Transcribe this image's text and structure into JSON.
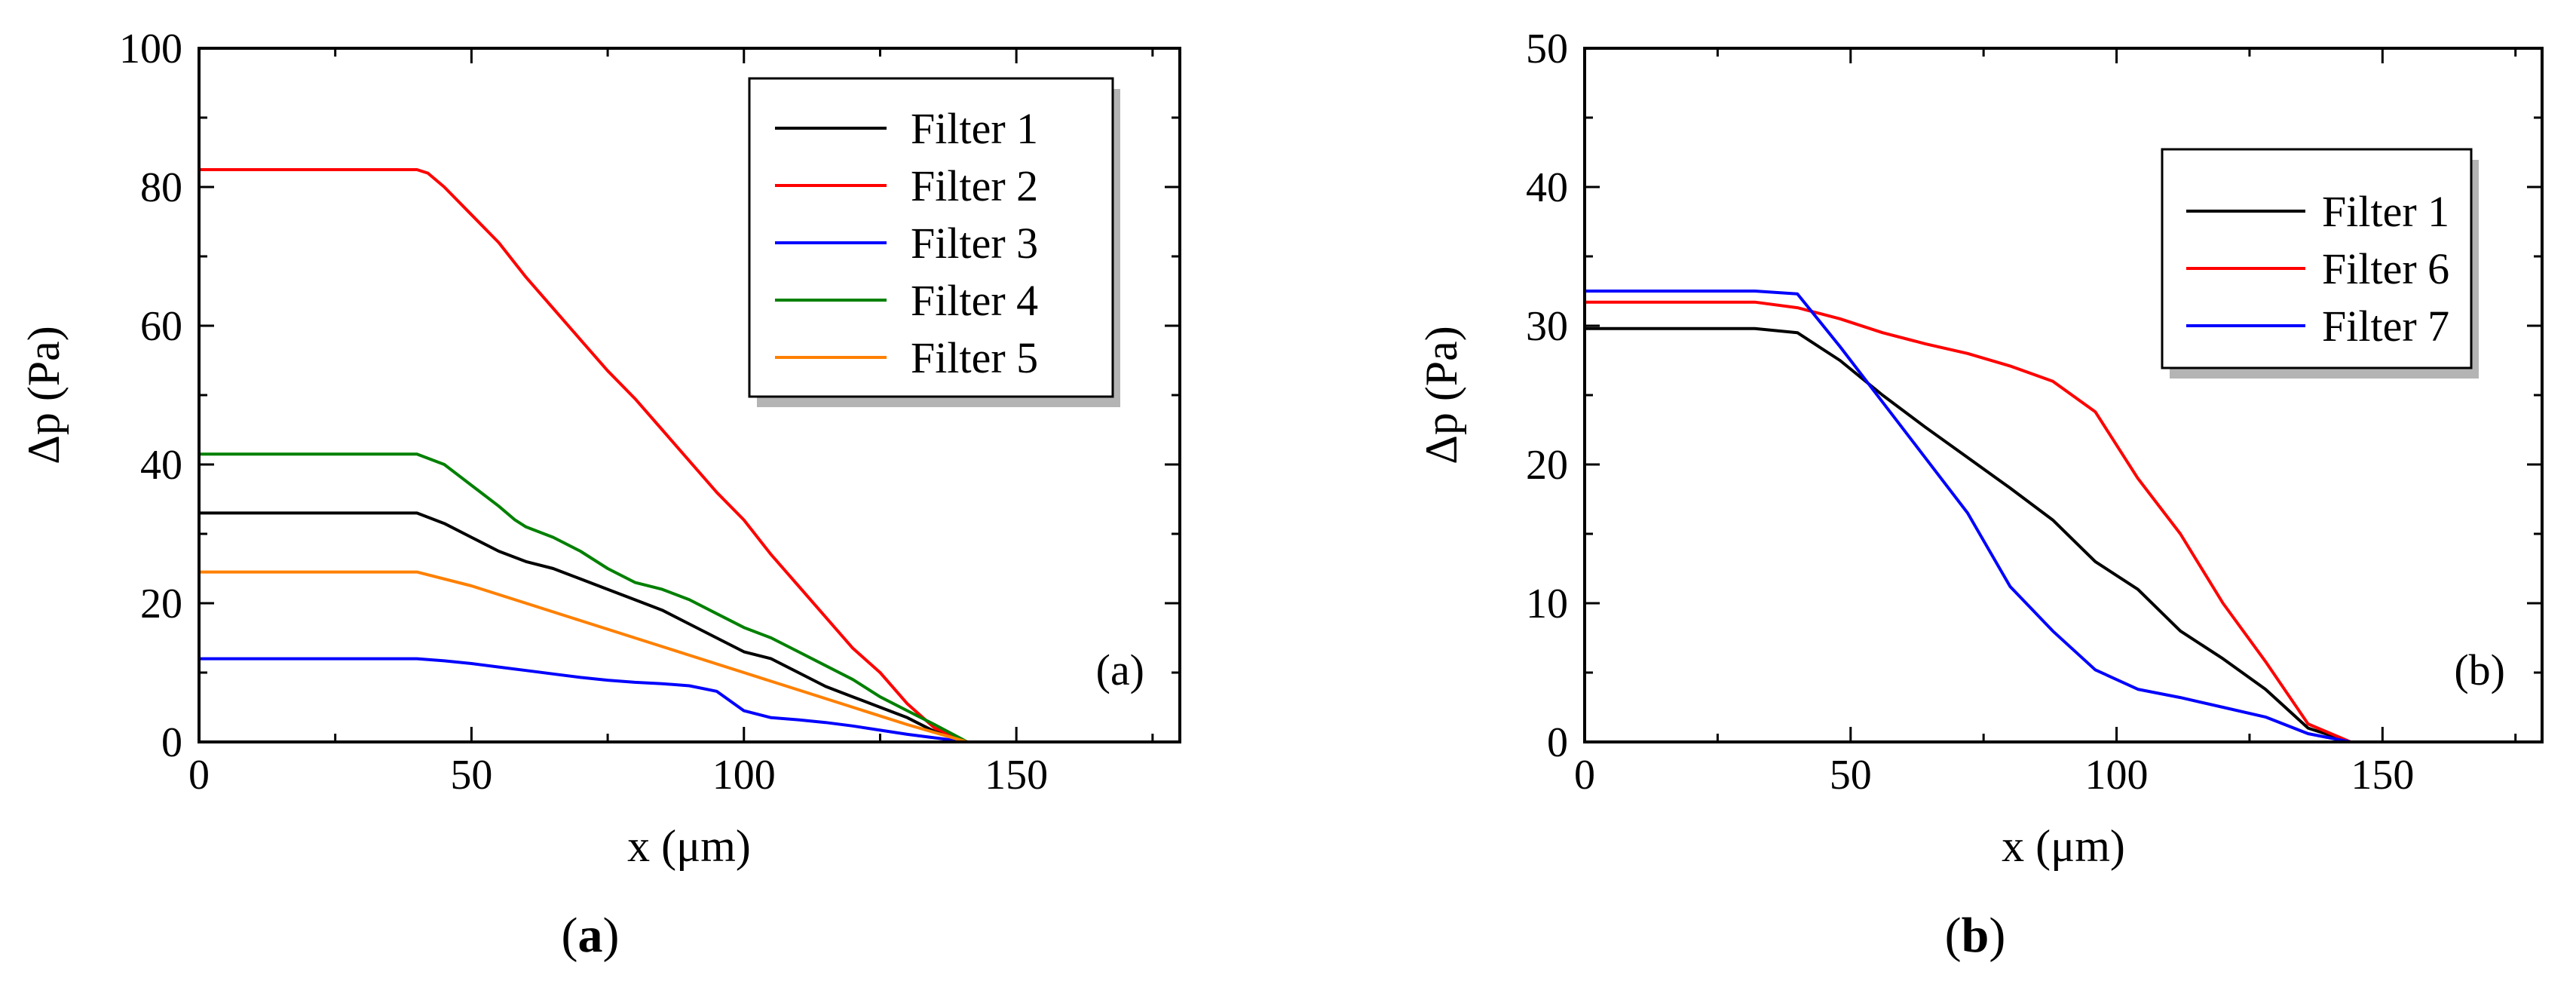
{
  "chart_data": [
    {
      "type": "line",
      "panel_label": "(a)",
      "caption_open": "(",
      "caption_letter": "a",
      "caption_close": ")",
      "xlabel": "x (μm)",
      "ylabel": "Δp (Pa)",
      "xlim": [
        0,
        180
      ],
      "ylim": [
        0,
        100
      ],
      "xticks": [
        0,
        50,
        100,
        150
      ],
      "yticks": [
        0,
        20,
        40,
        60,
        80,
        100
      ],
      "legend_position": "top-right",
      "series": [
        {
          "name": "Filter 1",
          "color": "#000000",
          "x": [
            0,
            40,
            45,
            50,
            55,
            60,
            65,
            70,
            75,
            80,
            85,
            90,
            95,
            100,
            105,
            110,
            115,
            120,
            125,
            130,
            135,
            141
          ],
          "y": [
            33,
            33,
            31.5,
            29.5,
            27.5,
            26,
            25,
            23.5,
            22,
            20.5,
            19,
            17,
            15,
            13,
            12,
            10,
            8,
            6.5,
            5,
            3.5,
            1.5,
            0
          ]
        },
        {
          "name": "Filter 2",
          "color": "#ff0000",
          "x": [
            0,
            40,
            42,
            45,
            50,
            55,
            60,
            65,
            70,
            75,
            80,
            85,
            90,
            95,
            100,
            105,
            110,
            115,
            120,
            125,
            130,
            135,
            141
          ],
          "y": [
            82.5,
            82.5,
            82,
            80,
            76,
            72,
            67,
            62.5,
            58,
            53.5,
            49.5,
            45,
            40.5,
            36,
            32,
            27,
            22.5,
            18,
            13.5,
            10,
            5.5,
            2,
            0
          ]
        },
        {
          "name": "Filter 3",
          "color": "#0000ff",
          "x": [
            0,
            40,
            45,
            50,
            55,
            60,
            65,
            70,
            75,
            80,
            85,
            90,
            95,
            100,
            105,
            110,
            115,
            120,
            125,
            130,
            135,
            141
          ],
          "y": [
            12,
            12,
            11.7,
            11.3,
            10.8,
            10.3,
            9.8,
            9.3,
            8.9,
            8.6,
            8.4,
            8.1,
            7.3,
            4.5,
            3.5,
            3.2,
            2.8,
            2.3,
            1.7,
            1.1,
            0.6,
            0
          ]
        },
        {
          "name": "Filter 4",
          "color": "#008000",
          "x": [
            0,
            40,
            45,
            50,
            55,
            58,
            60,
            65,
            70,
            75,
            80,
            85,
            90,
            95,
            100,
            105,
            110,
            115,
            120,
            125,
            130,
            135,
            141
          ],
          "y": [
            41.5,
            41.5,
            40,
            37,
            34,
            32,
            31,
            29.5,
            27.5,
            25,
            23,
            22,
            20.5,
            18.5,
            16.5,
            15,
            13,
            11,
            9,
            6.5,
            4.5,
            2.5,
            0
          ]
        },
        {
          "name": "Filter 5",
          "color": "#ff8000",
          "x": [
            0,
            40,
            50,
            60,
            70,
            80,
            90,
            100,
            110,
            120,
            130,
            141
          ],
          "y": [
            24.5,
            24.5,
            22.5,
            20,
            17.5,
            15,
            12.5,
            10,
            7.5,
            5,
            2.5,
            0
          ]
        }
      ]
    },
    {
      "type": "line",
      "panel_label": "(b)",
      "caption_open": "(",
      "caption_letter": "b",
      "caption_close": ")",
      "xlabel": "x (μm)",
      "ylabel": "Δp (Pa)",
      "xlim": [
        0,
        180
      ],
      "ylim": [
        0,
        50
      ],
      "xticks": [
        0,
        50,
        100,
        150
      ],
      "yticks": [
        0,
        10,
        20,
        30,
        40,
        50
      ],
      "legend_position": "top-right",
      "series": [
        {
          "name": "Filter 1",
          "color": "#000000",
          "x": [
            0,
            32,
            40,
            48,
            56,
            64,
            72,
            80,
            88,
            96,
            104,
            112,
            120,
            128,
            136,
            144
          ],
          "y": [
            29.8,
            29.8,
            29.5,
            27.5,
            25,
            22.7,
            20.5,
            18.3,
            16,
            13,
            11,
            8,
            6,
            3.8,
            1,
            0
          ]
        },
        {
          "name": "Filter 6",
          "color": "#ff0000",
          "x": [
            0,
            32,
            40,
            48,
            56,
            64,
            72,
            80,
            88,
            96,
            104,
            112,
            120,
            128,
            136,
            144
          ],
          "y": [
            31.7,
            31.7,
            31.3,
            30.5,
            29.5,
            28.7,
            28,
            27.1,
            26,
            23.8,
            19,
            15,
            10,
            5.8,
            1.3,
            0
          ]
        },
        {
          "name": "Filter 7",
          "color": "#0000ff",
          "x": [
            0,
            32,
            40,
            48,
            56,
            64,
            72,
            80,
            88,
            96,
            104,
            112,
            120,
            128,
            136,
            144,
            152,
            160,
            168,
            180
          ],
          "y": [
            32.5,
            32.5,
            32.3,
            28.5,
            24.5,
            20.5,
            16.5,
            11.2,
            8,
            5.2,
            3.8,
            3.2,
            2.5,
            1.8,
            0.6,
            0,
            0,
            0,
            0,
            0
          ]
        }
      ]
    }
  ]
}
